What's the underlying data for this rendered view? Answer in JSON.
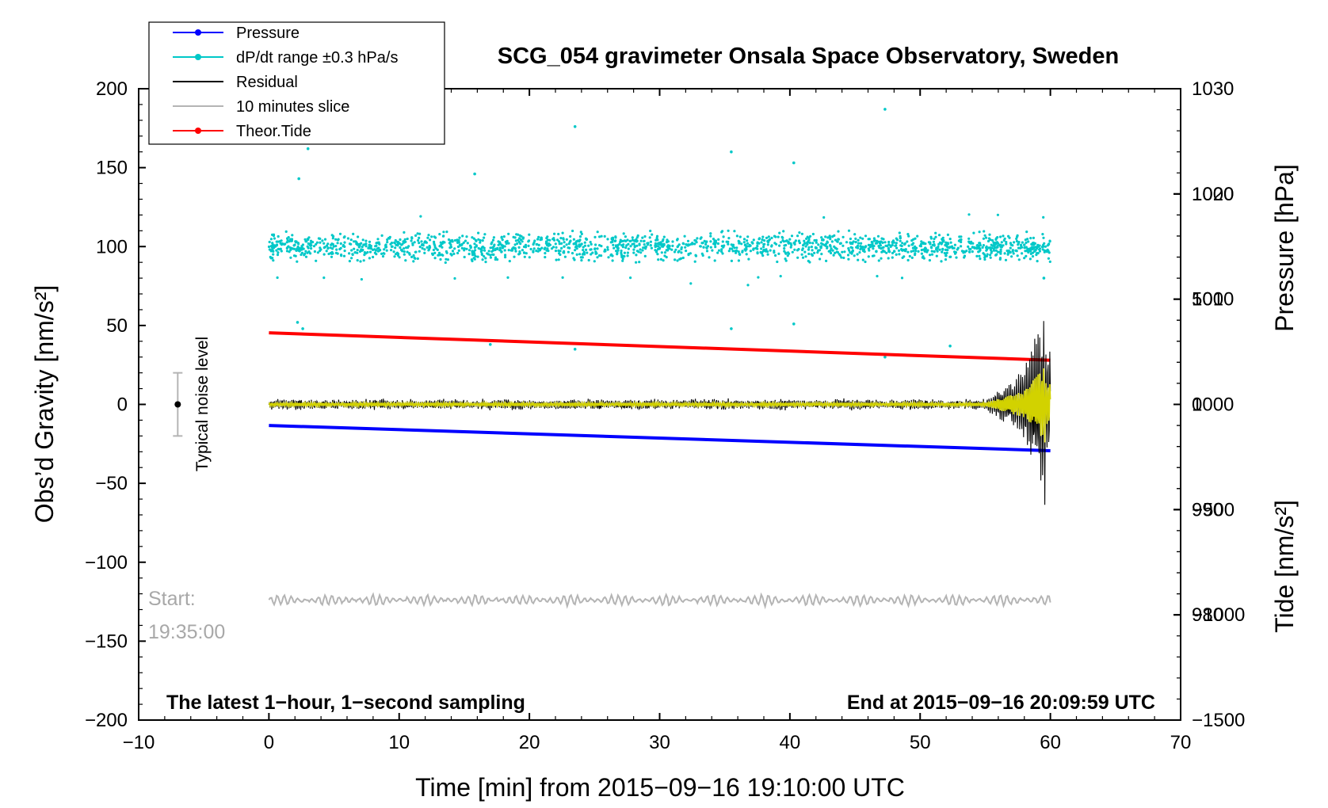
{
  "chart_data": {
    "type": "line",
    "title": "SCG_054 gravimeter Onsala Space Observatory, Sweden",
    "xlabel": "Time [min] from 2015−09−16 19:10:00 UTC",
    "ylabel_left": "Obs’d Gravity [nm/s²]",
    "ylabel_right_top": "Pressure [hPa]",
    "ylabel_right_bottom": "Tide [nm/s²]",
    "xlim": [
      -10,
      70
    ],
    "ylim": [
      -200,
      200
    ],
    "pressure_lim": [
      970,
      1030
    ],
    "tide_lim": [
      -1500,
      1500
    ],
    "x_ticks": [
      "−10",
      "0",
      "10",
      "20",
      "30",
      "40",
      "50",
      "60",
      "70"
    ],
    "x_tick_values": [
      -10,
      0,
      10,
      20,
      30,
      40,
      50,
      60,
      70
    ],
    "y_ticks": [
      "200",
      "150",
      "100",
      "50",
      "0",
      "−50",
      "−100",
      "−150",
      "−200"
    ],
    "y_tick_values": [
      200,
      150,
      100,
      50,
      0,
      -50,
      -100,
      -150,
      -200
    ],
    "pressure_ticks": [
      "1030",
      "1020",
      "1010",
      "1000",
      "990",
      "980"
    ],
    "pressure_tick_values": [
      1030,
      1020,
      1010,
      1000,
      990,
      980
    ],
    "tide_ticks": [
      "1000",
      "500",
      "0",
      "−500",
      "−1000",
      "−1500"
    ],
    "tide_tick_values": [
      1000,
      500,
      0,
      -500,
      -1000,
      -1500
    ],
    "legend": [
      {
        "label": "Pressure",
        "color": "#0000ff",
        "marker": "dot"
      },
      {
        "label": "dP/dt range ±0.3 hPa/s",
        "color": "#00c8c8",
        "marker": "dot"
      },
      {
        "label": "Residual",
        "color": "#000000",
        "marker": "none"
      },
      {
        "label": "10 minutes slice",
        "color": "#b4b4b4",
        "marker": "none"
      },
      {
        "label": "Theor.Tide",
        "color": "#ff0000",
        "marker": "dot"
      }
    ],
    "series": [
      {
        "name": "Pressure",
        "axis": "pressure",
        "color": "#0000ff",
        "x": [
          0,
          60
        ],
        "values": [
          998.0,
          995.6
        ]
      },
      {
        "name": "Theor.Tide",
        "axis": "tide",
        "color": "#ff0000",
        "x": [
          0,
          60
        ],
        "values": [
          340,
          210
        ]
      },
      {
        "name": "dP/dt range ±0.3 hPa/s",
        "axis": "gravity",
        "color": "#00c8c8",
        "center": 100,
        "spread": 6,
        "outliers": [
          [
            2.2,
            52
          ],
          [
            2.6,
            48
          ],
          [
            3.0,
            162
          ],
          [
            2.3,
            143
          ],
          [
            17.0,
            38
          ],
          [
            23.5,
            176
          ],
          [
            23.5,
            35
          ],
          [
            35.5,
            160
          ],
          [
            35.5,
            48
          ],
          [
            40.3,
            153
          ],
          [
            40.3,
            51
          ],
          [
            47.3,
            187
          ],
          [
            47.3,
            30
          ],
          [
            52.3,
            37
          ],
          [
            15.8,
            146
          ],
          [
            59.5,
            80
          ]
        ]
      },
      {
        "name": "Residual",
        "axis": "gravity",
        "color": "#000000",
        "x_range": [
          0,
          60
        ],
        "baseline": 0
      },
      {
        "name": "Filtered",
        "axis": "gravity",
        "color": "#d2d200",
        "x_range": [
          0,
          60
        ],
        "baseline": 0
      },
      {
        "name": "10 minutes slice",
        "axis": "gravity",
        "color": "#b4b4b4",
        "x_range": [
          0,
          60
        ],
        "baseline": -124
      }
    ],
    "noise_level": {
      "label": "Typical noise level",
      "x": -7,
      "center": 0,
      "range": [
        -20,
        20
      ]
    },
    "start_label": [
      "Start:",
      "19:35:00"
    ],
    "annotation_left": "The latest 1−hour, 1−second sampling",
    "annotation_right": "End at 2015−09−16 20:09:59 UTC"
  },
  "colors": {
    "pressure": "#0000ff",
    "dpdt": "#00c8c8",
    "residual": "#000000",
    "slice": "#b4b4b4",
    "tide": "#ff0000",
    "filtered": "#d2d200"
  }
}
